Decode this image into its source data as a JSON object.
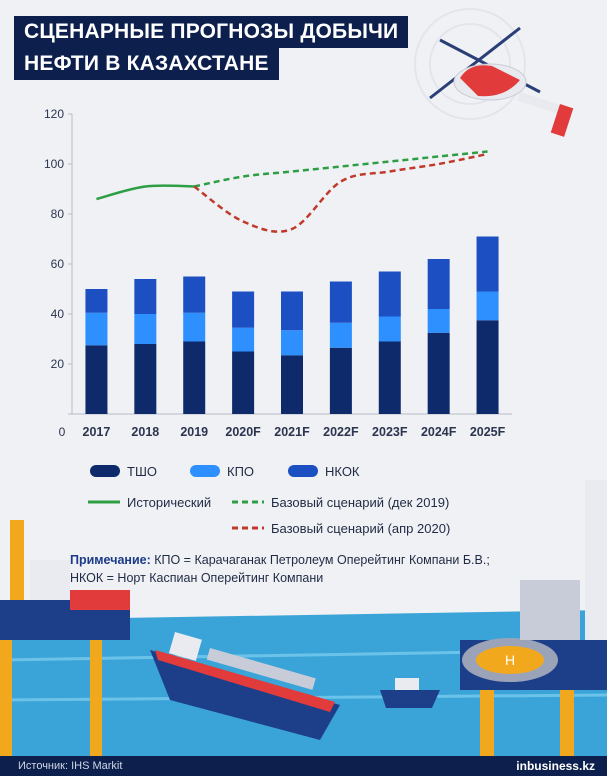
{
  "header": {
    "title_line1": "СЦЕНАРНЫЕ ПРОГНОЗЫ ДОБЫЧИ",
    "title_line2": "НЕФТИ В КАЗАХСТАНЕ"
  },
  "chart_data": {
    "type": "bar+line",
    "categories": [
      "2017",
      "2018",
      "2019",
      "2020F",
      "2021F",
      "2022F",
      "2023F",
      "2024F",
      "2025F"
    ],
    "ylim": [
      0,
      120
    ],
    "yticks": [
      0,
      20,
      40,
      60,
      80,
      100,
      120
    ],
    "bars": [
      {
        "name": "ТШО",
        "color": "#0f2a6b",
        "values": [
          27.5,
          28,
          29,
          25,
          23.5,
          26.5,
          29,
          32.5,
          37.5
        ]
      },
      {
        "name": "КПО",
        "color": "#2e8fff",
        "values": [
          13,
          12,
          11.5,
          9.5,
          10,
          10,
          10,
          9.5,
          11.5
        ]
      },
      {
        "name": "НКОК",
        "color": "#1c4fc2",
        "values": [
          9.5,
          14,
          14.5,
          14.5,
          15.5,
          16.5,
          18,
          20,
          22
        ]
      }
    ],
    "lines": [
      {
        "name": "Исторический",
        "color": "#2e9e45",
        "dash": "solid",
        "x": [
          "2017",
          "2018",
          "2019"
        ],
        "y": [
          86,
          91,
          91
        ]
      },
      {
        "name": "Базовый сценарий (дек 2019)",
        "color": "#2e9e45",
        "dash": "dashed",
        "x": [
          "2019",
          "2020F",
          "2021F",
          "2022F",
          "2023F",
          "2024F",
          "2025F"
        ],
        "y": [
          91,
          95,
          97,
          99,
          101,
          103,
          105
        ]
      },
      {
        "name": "Базовый сценарий (апр 2020)",
        "color": "#c0392b",
        "dash": "dashed",
        "x": [
          "2019",
          "2020F",
          "2021F",
          "2022F",
          "2023F",
          "2024F",
          "2025F"
        ],
        "y": [
          91,
          77,
          74,
          93,
          97,
          100,
          104
        ]
      }
    ]
  },
  "legend": {
    "tsho": "ТШО",
    "kpo": "КПО",
    "nkok": "НКОК",
    "historical": "Исторический",
    "base_dec": "Базовый сценарий (дек 2019)",
    "base_apr": "Базовый сценарий (апр 2020)"
  },
  "note": {
    "label": "Примечание:",
    "line1": " КПО = Карачаганак Петролеум Оперейтинг Компани Б.В.;",
    "line2": "НКОК = Норт Каспиан Оперейтинг Компани"
  },
  "footer": {
    "source": "Источник: IHS Markit",
    "brand": "inbusiness.kz"
  },
  "colors": {
    "navy": "#0d1f4c",
    "sea": "#3aa4d8",
    "deck": "#1d3f8a"
  }
}
